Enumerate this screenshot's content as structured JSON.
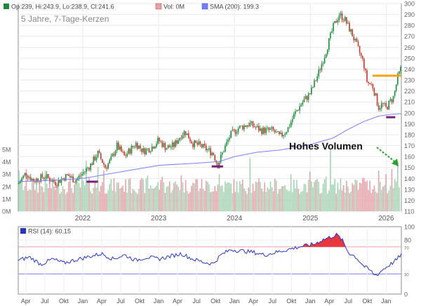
{
  "chart_data": [
    {
      "type": "candlestick",
      "title": "5 Jahre, 7-Tage-Kerzen",
      "legend": {
        "ohlc": "Op:239, Hi:243.9, Lo:238.9, Cl:241.6",
        "volume": "Vol: 0M",
        "sma": "SMA (200): 199.3"
      },
      "colors": {
        "up": "#1a8a3a",
        "down": "#c0392b",
        "sma": "#7a7fff",
        "volume_up": "#a7d2b4",
        "volume_down": "#e3a3aa",
        "resistance": "#f2a51a",
        "support_marker": "#7b1f7b"
      },
      "price_axis": {
        "min": 110,
        "max": 300,
        "ticks": [
          110,
          120,
          130,
          140,
          150,
          160,
          170,
          180,
          190,
          200,
          210,
          220,
          230,
          240,
          250,
          260,
          270,
          280,
          290,
          300
        ]
      },
      "volume_axis": {
        "min": 0,
        "max": 5,
        "ticks": [
          0,
          1,
          2,
          3,
          4,
          5
        ],
        "tick_labels": [
          "0M",
          "1M",
          "2M",
          "3M",
          "4M",
          "5M"
        ]
      },
      "x_axis": {
        "start": 2021.15,
        "end": 2026.2,
        "year_labels": [
          "2022",
          "2023",
          "2024",
          "2025",
          "2026"
        ],
        "year_positions": [
          2022,
          2023,
          2024,
          2025,
          2026
        ]
      },
      "close_points": [
        [
          2021.15,
          135
        ],
        [
          2021.25,
          145
        ],
        [
          2021.35,
          138
        ],
        [
          2021.5,
          142
        ],
        [
          2021.65,
          136
        ],
        [
          2021.8,
          143
        ],
        [
          2021.9,
          138
        ],
        [
          2022.0,
          145
        ],
        [
          2022.1,
          152
        ],
        [
          2022.2,
          163
        ],
        [
          2022.3,
          150
        ],
        [
          2022.38,
          158
        ],
        [
          2022.45,
          170
        ],
        [
          2022.55,
          160
        ],
        [
          2022.7,
          172
        ],
        [
          2022.8,
          165
        ],
        [
          2022.9,
          168
        ],
        [
          2023.0,
          175
        ],
        [
          2023.1,
          168
        ],
        [
          2023.2,
          170
        ],
        [
          2023.3,
          180
        ],
        [
          2023.35,
          183
        ],
        [
          2023.45,
          172
        ],
        [
          2023.55,
          170
        ],
        [
          2023.65,
          166
        ],
        [
          2023.72,
          163
        ],
        [
          2023.78,
          152
        ],
        [
          2023.85,
          165
        ],
        [
          2023.95,
          180
        ],
        [
          2024.05,
          186
        ],
        [
          2024.2,
          190
        ],
        [
          2024.35,
          184
        ],
        [
          2024.5,
          184
        ],
        [
          2024.6,
          178
        ],
        [
          2024.7,
          185
        ],
        [
          2024.8,
          200
        ],
        [
          2024.9,
          210
        ],
        [
          2025.0,
          218
        ],
        [
          2025.1,
          235
        ],
        [
          2025.2,
          255
        ],
        [
          2025.3,
          278
        ],
        [
          2025.38,
          290
        ],
        [
          2025.45,
          286
        ],
        [
          2025.55,
          272
        ],
        [
          2025.62,
          260
        ],
        [
          2025.7,
          246
        ],
        [
          2025.75,
          228
        ],
        [
          2025.82,
          225
        ],
        [
          2025.9,
          205
        ],
        [
          2025.95,
          208
        ],
        [
          2026.0,
          204
        ],
        [
          2026.05,
          210
        ],
        [
          2026.1,
          215
        ],
        [
          2026.15,
          232
        ],
        [
          2026.2,
          241.6
        ]
      ],
      "sma_points": [
        [
          2021.15,
          137
        ],
        [
          2021.5,
          138
        ],
        [
          2021.8,
          139
        ],
        [
          2022.0,
          140
        ],
        [
          2022.5,
          146
        ],
        [
          2023.0,
          152
        ],
        [
          2023.5,
          154
        ],
        [
          2023.8,
          155.5
        ],
        [
          2024.0,
          160
        ],
        [
          2024.3,
          164
        ],
        [
          2024.6,
          166
        ],
        [
          2024.85,
          169
        ],
        [
          2025.0,
          171
        ],
        [
          2025.3,
          177
        ],
        [
          2025.5,
          185
        ],
        [
          2025.7,
          192
        ],
        [
          2025.9,
          197
        ],
        [
          2026.05,
          198.5
        ],
        [
          2026.2,
          199.3
        ]
      ],
      "volume_spikes": [
        [
          2021.15,
          3.3
        ],
        [
          2021.25,
          3.4
        ],
        [
          2021.5,
          3.3
        ],
        [
          2022.05,
          4.1
        ],
        [
          2022.2,
          3.6
        ],
        [
          2022.28,
          3.3
        ],
        [
          2022.6,
          2.6
        ],
        [
          2022.85,
          2.9
        ],
        [
          2023.05,
          2.8
        ],
        [
          2023.3,
          2.9
        ],
        [
          2023.5,
          2.6
        ],
        [
          2023.8,
          3.0
        ],
        [
          2024.2,
          4.3
        ],
        [
          2024.75,
          3.0
        ],
        [
          2025.0,
          3.2
        ],
        [
          2025.2,
          2.8
        ],
        [
          2025.27,
          5.0
        ],
        [
          2025.7,
          2.7
        ],
        [
          2025.9,
          3.3
        ],
        [
          2026.0,
          3.0
        ],
        [
          2026.08,
          3.4
        ],
        [
          2026.15,
          4.0
        ]
      ],
      "resistance_line": {
        "x_start": 2025.82,
        "x_end": 2026.2,
        "y": 234
      },
      "support_markers": [
        {
          "x_start": 2022.05,
          "x_end": 2022.2,
          "y": 137
        },
        {
          "x_start": 2023.7,
          "x_end": 2023.85,
          "y": 151
        },
        {
          "x_start": 2026.0,
          "x_end": 2026.12,
          "y": 196
        }
      ],
      "annotation": {
        "text": "Hohes Volumen"
      }
    },
    {
      "type": "line",
      "label": "RSI (14): 60.15",
      "color": "#2a35c8",
      "overbought_fill": "#e8373f",
      "ylim": [
        0,
        100
      ],
      "ticks": [
        100,
        80,
        70,
        30,
        0
      ],
      "tick_labels": {
        "100": "100",
        "80": "80",
        "70": "70",
        "30": "30",
        "0": "0"
      },
      "x_axis": {
        "start": 2021.15,
        "end": 2026.2
      },
      "month_labels": [
        "Apr",
        "Jul",
        "Okt",
        "Jan",
        "Apr",
        "Jul",
        "Okt",
        "Jan",
        "Apr",
        "Jul",
        "Okt",
        "Jan",
        "Apr",
        "Jul",
        "Okt",
        "Jan",
        "Apr",
        "Jul",
        "Okt",
        "Jan"
      ],
      "month_positions": [
        2021.25,
        2021.5,
        2021.75,
        2022.0,
        2022.25,
        2022.5,
        2022.75,
        2023.0,
        2023.25,
        2023.5,
        2023.75,
        2024.0,
        2024.25,
        2024.5,
        2024.75,
        2025.0,
        2025.25,
        2025.5,
        2025.75,
        2026.0
      ],
      "points": [
        [
          2021.15,
          50
        ],
        [
          2021.3,
          55
        ],
        [
          2021.45,
          44
        ],
        [
          2021.6,
          52
        ],
        [
          2021.75,
          46
        ],
        [
          2021.95,
          52
        ],
        [
          2022.1,
          56
        ],
        [
          2022.25,
          60
        ],
        [
          2022.4,
          52
        ],
        [
          2022.55,
          58
        ],
        [
          2022.7,
          50
        ],
        [
          2022.85,
          55
        ],
        [
          2023.0,
          52
        ],
        [
          2023.15,
          56
        ],
        [
          2023.3,
          60
        ],
        [
          2023.45,
          52
        ],
        [
          2023.6,
          47
        ],
        [
          2023.72,
          45
        ],
        [
          2023.82,
          58
        ],
        [
          2023.95,
          66
        ],
        [
          2024.1,
          64
        ],
        [
          2024.25,
          62
        ],
        [
          2024.4,
          58
        ],
        [
          2024.55,
          62
        ],
        [
          2024.7,
          66
        ],
        [
          2024.85,
          70
        ],
        [
          2024.95,
          72
        ],
        [
          2025.05,
          74
        ],
        [
          2025.15,
          80
        ],
        [
          2025.25,
          84
        ],
        [
          2025.35,
          88
        ],
        [
          2025.42,
          80
        ],
        [
          2025.5,
          62
        ],
        [
          2025.6,
          55
        ],
        [
          2025.7,
          42
        ],
        [
          2025.8,
          34
        ],
        [
          2025.85,
          28
        ],
        [
          2025.9,
          30
        ],
        [
          2025.95,
          36
        ],
        [
          2026.0,
          40
        ],
        [
          2026.08,
          46
        ],
        [
          2026.15,
          52
        ],
        [
          2026.2,
          60.15
        ]
      ]
    }
  ]
}
